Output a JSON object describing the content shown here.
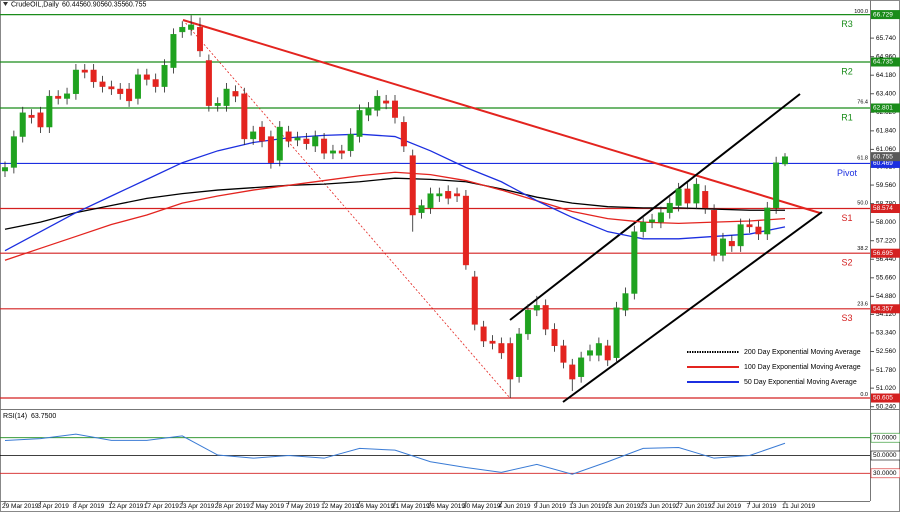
{
  "chart_data": {
    "type": "candlestick",
    "symbol": "CrudeOIL,Daily",
    "categories": [
      "29 Mar 2019",
      null,
      null,
      null,
      "3 Apr 2019",
      null,
      null,
      null,
      "8 Apr 2019",
      null,
      null,
      null,
      "12 Apr 2019",
      null,
      null,
      null,
      "17 Apr 2019",
      null,
      null,
      null,
      "23 Apr 2019",
      null,
      null,
      null,
      "28 Apr 2019",
      null,
      null,
      null,
      "2 May 2019",
      null,
      null,
      null,
      "7 May 2019",
      null,
      null,
      null,
      "12 May 2019",
      null,
      null,
      null,
      "16 May 2019",
      null,
      null,
      null,
      "21 May 2019",
      null,
      null,
      null,
      "26 May 2019",
      null,
      null,
      null,
      "30 May 2019",
      null,
      null,
      null,
      "4 Jun 2019",
      null,
      null,
      null,
      "9 Jun 2019",
      null,
      null,
      null,
      "13 Jun 2019",
      null,
      null,
      null,
      "18 Jun 2019",
      null,
      null,
      null,
      "23 Jun 2019",
      null,
      null,
      null,
      "27 Jun 2019",
      null,
      null,
      null,
      "2 Jul 2019",
      null,
      null,
      null,
      "7 Jul 2019",
      null,
      null,
      null,
      "11 Jul 2019"
    ],
    "open": [
      60.15,
      60.3,
      61.6,
      62.5,
      62.6,
      62.0,
      63.3,
      63.2,
      63.4,
      64.4,
      64.4,
      63.9,
      63.7,
      63.6,
      63.6,
      63.2,
      64.2,
      64.0,
      63.7,
      64.5,
      66.0,
      66.1,
      66.2,
      64.8,
      62.9,
      62.9,
      63.5,
      63.4,
      61.5,
      62.0,
      61.6,
      60.6,
      61.8,
      61.45,
      61.5,
      61.2,
      61.5,
      60.9,
      61.0,
      61.0,
      61.6,
      62.5,
      62.7,
      63.1,
      63.1,
      62.2,
      60.8,
      58.4,
      58.6,
      59.1,
      59.3,
      59.2,
      59.1,
      55.7,
      53.6,
      53.0,
      52.9,
      52.9,
      51.5,
      53.3,
      54.3,
      54.5,
      53.5,
      52.8,
      52.0,
      51.5,
      52.4,
      52.4,
      52.8,
      52.3,
      54.3,
      55.0,
      57.6,
      58.0,
      58.0,
      58.4,
      58.7,
      59.4,
      58.8,
      59.3,
      58.5,
      56.6,
      57.2,
      57.0,
      57.9,
      57.8,
      57.5,
      58.6,
      60.445
    ],
    "high": [
      60.55,
      61.85,
      62.85,
      62.75,
      62.85,
      63.55,
      63.55,
      63.65,
      64.65,
      64.65,
      64.65,
      64.15,
      63.95,
      63.85,
      63.85,
      64.45,
      64.45,
      64.25,
      64.85,
      66.15,
      66.45,
      66.7,
      66.6,
      65.05,
      63.25,
      63.85,
      63.75,
      63.65,
      62.05,
      62.25,
      61.85,
      62.25,
      62.05,
      61.8,
      61.75,
      61.85,
      61.75,
      61.25,
      61.25,
      61.95,
      62.95,
      63.05,
      63.55,
      63.35,
      63.35,
      62.45,
      61.05,
      58.95,
      59.45,
      59.45,
      59.55,
      59.45,
      59.35,
      55.95,
      53.85,
      53.25,
      53.15,
      53.15,
      53.55,
      54.55,
      54.9,
      54.75,
      53.75,
      53.05,
      52.25,
      52.55,
      52.85,
      53.15,
      53.05,
      54.65,
      55.25,
      57.85,
      58.25,
      58.35,
      58.65,
      59.05,
      59.65,
      59.65,
      59.85,
      59.55,
      58.75,
      57.55,
      57.45,
      58.15,
      58.15,
      58.05,
      58.85,
      60.75,
      60.905
    ],
    "low": [
      59.9,
      60.05,
      61.35,
      62.15,
      61.75,
      61.75,
      62.95,
      62.95,
      63.15,
      64.05,
      63.65,
      63.45,
      63.35,
      63.15,
      62.85,
      62.95,
      63.75,
      63.45,
      63.45,
      64.25,
      65.75,
      65.85,
      64.95,
      62.65,
      62.65,
      62.65,
      63.05,
      61.25,
      61.25,
      61.15,
      60.25,
      60.35,
      61.15,
      61.2,
      61.05,
      60.95,
      60.65,
      60.65,
      60.65,
      60.75,
      61.35,
      62.25,
      62.45,
      62.75,
      62.15,
      60.95,
      57.6,
      58.15,
      58.35,
      58.85,
      58.75,
      58.85,
      56.0,
      53.45,
      52.75,
      52.65,
      52.25,
      50.61,
      51.25,
      53.05,
      54.05,
      53.25,
      52.55,
      51.85,
      50.9,
      51.25,
      52.15,
      52.15,
      51.95,
      52.05,
      54.05,
      54.75,
      57.35,
      57.75,
      57.75,
      58.15,
      58.45,
      58.55,
      58.55,
      58.35,
      56.35,
      56.35,
      56.75,
      56.75,
      57.55,
      57.25,
      57.25,
      58.35,
      60.355
    ],
    "close": [
      60.3,
      61.6,
      62.6,
      62.4,
      62.0,
      63.3,
      63.2,
      63.4,
      64.4,
      64.3,
      63.9,
      63.7,
      63.6,
      63.4,
      63.1,
      64.2,
      64.0,
      63.7,
      64.6,
      65.9,
      66.2,
      66.3,
      65.2,
      62.9,
      63.0,
      63.6,
      63.3,
      61.5,
      61.8,
      61.4,
      60.5,
      62.0,
      61.4,
      61.55,
      61.3,
      61.6,
      60.9,
      61.0,
      60.9,
      61.7,
      62.7,
      62.8,
      63.3,
      63.0,
      62.4,
      61.2,
      58.3,
      58.7,
      59.2,
      59.2,
      59.0,
      59.1,
      56.2,
      53.7,
      53.0,
      52.9,
      52.5,
      51.4,
      53.3,
      54.3,
      54.5,
      53.5,
      52.8,
      52.1,
      51.4,
      52.3,
      52.6,
      52.9,
      52.2,
      54.4,
      55.0,
      57.6,
      58.0,
      58.1,
      58.4,
      58.8,
      59.4,
      58.8,
      59.6,
      58.6,
      56.6,
      57.3,
      57.0,
      57.9,
      57.8,
      57.5,
      58.6,
      60.5,
      60.755
    ],
    "colors": {
      "up": "#1fa21f",
      "down": "#e3241f",
      "wick": "#222222",
      "current": "#5a5a5a"
    },
    "ylim": [
      50.185,
      66.964
    ],
    "yticks": [
      {
        "value": 50.24,
        "label": "50.240"
      },
      {
        "value": 51.02,
        "label": "51.020"
      },
      {
        "value": 51.78,
        "label": "51.780"
      },
      {
        "value": 52.56,
        "label": "52.560"
      },
      {
        "value": 53.34,
        "label": "53.340"
      },
      {
        "value": 54.12,
        "label": "54.120"
      },
      {
        "value": 54.88,
        "label": "54.880"
      },
      {
        "value": 55.66,
        "label": "55.660"
      },
      {
        "value": 56.44,
        "label": "56.440"
      },
      {
        "value": 57.22,
        "label": "57.220"
      },
      {
        "value": 58.0,
        "label": "58.000"
      },
      {
        "value": 58.78,
        "label": "58.780"
      },
      {
        "value": 59.56,
        "label": "59.560"
      },
      {
        "value": 60.32,
        "label": "60.320"
      },
      {
        "value": 61.06,
        "label": "61.060"
      },
      {
        "value": 61.84,
        "label": "61.840"
      },
      {
        "value": 62.62,
        "label": "62.620"
      },
      {
        "value": 63.4,
        "label": "63.400"
      },
      {
        "value": 64.18,
        "label": "64.180"
      },
      {
        "value": 64.96,
        "label": "64.960"
      },
      {
        "value": 65.74,
        "label": "65.740"
      }
    ],
    "grid": false,
    "moving_averages": {
      "x": [
        0,
        4,
        8,
        12,
        16,
        20,
        24,
        28,
        32,
        36,
        40,
        44,
        48,
        52,
        56,
        60,
        64,
        68,
        72,
        76,
        80,
        84,
        88
      ],
      "series": [
        {
          "name": "200 Day Exponential Moving Average",
          "color": "#000000",
          "values": [
            57.7,
            58.0,
            58.4,
            58.7,
            59.0,
            59.2,
            59.35,
            59.45,
            59.55,
            59.6,
            59.7,
            59.85,
            59.8,
            59.7,
            59.4,
            59.05,
            58.8,
            58.65,
            58.6,
            58.6,
            58.55,
            58.5,
            58.5
          ]
        },
        {
          "name": "100 Day Exponential Moving Average",
          "color": "#e3241f",
          "values": [
            56.4,
            56.9,
            57.4,
            57.9,
            58.3,
            58.8,
            59.1,
            59.35,
            59.55,
            59.75,
            59.95,
            60.1,
            60.0,
            59.75,
            59.35,
            58.9,
            58.45,
            58.15,
            58.0,
            57.95,
            58.0,
            58.05,
            58.15
          ]
        },
        {
          "name": "50 Day Exponential Moving Average",
          "color": "#1c2fe0",
          "values": [
            56.8,
            57.6,
            58.4,
            59.1,
            59.8,
            60.5,
            61.0,
            61.35,
            61.55,
            61.65,
            61.7,
            61.6,
            61.0,
            60.3,
            59.7,
            58.9,
            58.2,
            57.6,
            57.3,
            57.3,
            57.4,
            57.5,
            57.8
          ]
        }
      ]
    },
    "legend_position": "lower-right",
    "levels": [
      {
        "name": "R3",
        "value": 66.729,
        "color": "#1a8c1a"
      },
      {
        "name": "R2",
        "value": 64.735,
        "color": "#1a8c1a"
      },
      {
        "name": "R1",
        "value": 62.801,
        "color": "#1a8c1a"
      },
      {
        "name": "Pivot",
        "value": 60.469,
        "color": "#1c2fe0"
      },
      {
        "name": "S1",
        "value": 58.574,
        "color": "#d42020"
      },
      {
        "name": "S2",
        "value": 56.695,
        "color": "#d42020"
      },
      {
        "name": "S3",
        "value": 54.357,
        "color": "#d42020"
      },
      {
        "value": 50.605,
        "color": "#d42020"
      }
    ],
    "fib_levels": {
      "labels": [
        "100.0",
        "76.4",
        "61.8",
        "50.0",
        "38.2",
        "23.6",
        "0.0"
      ],
      "values": [
        66.7,
        62.9,
        60.55,
        58.65,
        56.75,
        54.4,
        50.6
      ]
    },
    "rsi": {
      "name": "RSI(14)",
      "value_label": "63.7500",
      "color": "#3a7bd5",
      "x": [
        0,
        4,
        8,
        12,
        16,
        20,
        24,
        28,
        32,
        36,
        40,
        44,
        48,
        52,
        56,
        60,
        64,
        68,
        72,
        76,
        80,
        84,
        88
      ],
      "values": [
        66.8,
        69,
        74,
        67,
        67,
        72,
        50.5,
        47,
        50,
        47,
        58,
        56,
        43,
        36.5,
        31,
        40,
        29,
        43,
        58,
        59,
        47,
        50,
        63.75
      ],
      "ylim": [
        0,
        100
      ],
      "yticks": [
        {
          "value": 70,
          "label": "70.0000"
        },
        {
          "value": 50,
          "label": "50.0000"
        },
        {
          "value": 30,
          "label": "30.0000"
        }
      ],
      "level_colors": [
        "#1a8c1a",
        "#000000",
        "#d42020"
      ]
    }
  }
}
